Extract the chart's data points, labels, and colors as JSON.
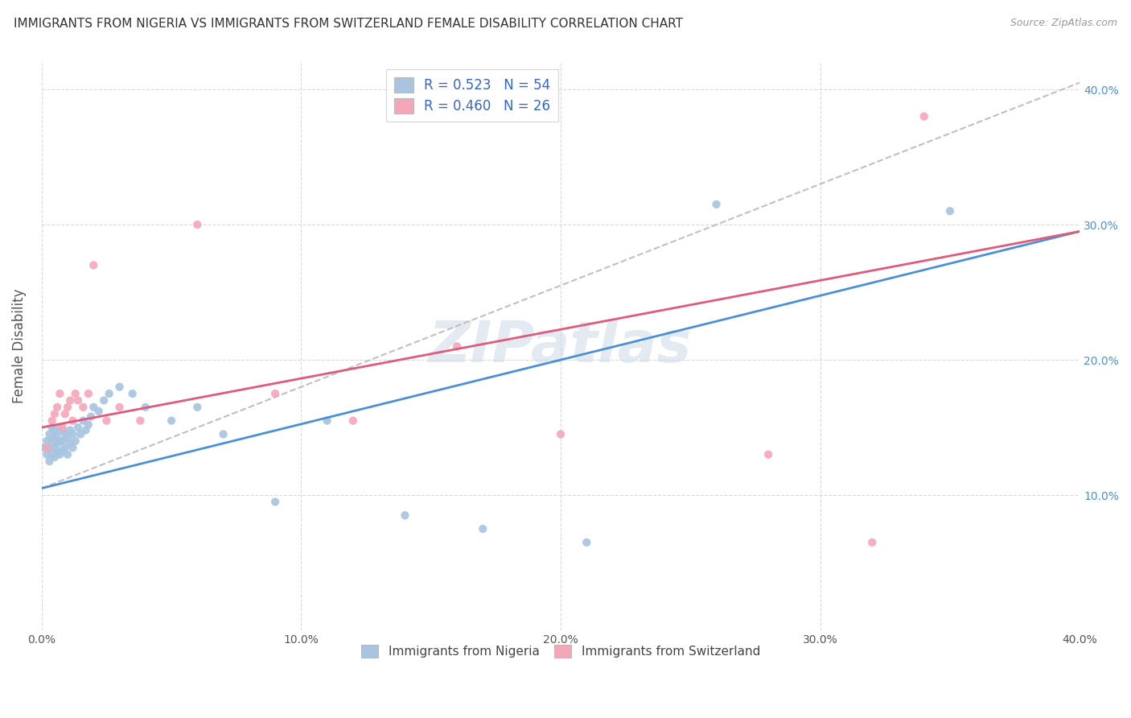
{
  "title": "IMMIGRANTS FROM NIGERIA VS IMMIGRANTS FROM SWITZERLAND FEMALE DISABILITY CORRELATION CHART",
  "source": "Source: ZipAtlas.com",
  "ylabel": "Female Disability",
  "legend_nigeria": "Immigrants from Nigeria",
  "legend_switzerland": "Immigrants from Switzerland",
  "color_nigeria": "#a8c4e0",
  "color_switzerland": "#f4a7b9",
  "line_color_nigeria": "#4a90d9",
  "line_color_switzerland": "#e05a7a",
  "line_color_dashed": "#c0c0c0",
  "watermark": "ZIPatlas",
  "xlim": [
    0.0,
    0.4
  ],
  "ylim": [
    0.0,
    0.42
  ],
  "yticks_right": [
    0.1,
    0.2,
    0.3,
    0.4
  ],
  "xticks": [
    0.0,
    0.1,
    0.2,
    0.3,
    0.4
  ],
  "nigeria_x": [
    0.001,
    0.002,
    0.002,
    0.003,
    0.003,
    0.003,
    0.004,
    0.004,
    0.004,
    0.005,
    0.005,
    0.005,
    0.005,
    0.006,
    0.006,
    0.006,
    0.007,
    0.007,
    0.007,
    0.008,
    0.008,
    0.008,
    0.009,
    0.009,
    0.01,
    0.01,
    0.011,
    0.011,
    0.012,
    0.012,
    0.013,
    0.014,
    0.015,
    0.016,
    0.017,
    0.018,
    0.019,
    0.02,
    0.022,
    0.024,
    0.026,
    0.03,
    0.035,
    0.04,
    0.05,
    0.06,
    0.07,
    0.09,
    0.11,
    0.14,
    0.17,
    0.21,
    0.26,
    0.35
  ],
  "nigeria_y": [
    0.135,
    0.13,
    0.14,
    0.125,
    0.135,
    0.145,
    0.13,
    0.14,
    0.15,
    0.128,
    0.135,
    0.142,
    0.148,
    0.132,
    0.138,
    0.145,
    0.13,
    0.14,
    0.15,
    0.133,
    0.14,
    0.148,
    0.135,
    0.145,
    0.13,
    0.142,
    0.138,
    0.148,
    0.135,
    0.145,
    0.14,
    0.15,
    0.145,
    0.155,
    0.148,
    0.152,
    0.158,
    0.165,
    0.162,
    0.17,
    0.175,
    0.18,
    0.175,
    0.165,
    0.155,
    0.165,
    0.145,
    0.095,
    0.155,
    0.085,
    0.075,
    0.065,
    0.315,
    0.31
  ],
  "switzerland_x": [
    0.002,
    0.004,
    0.005,
    0.006,
    0.007,
    0.008,
    0.009,
    0.01,
    0.011,
    0.012,
    0.013,
    0.014,
    0.016,
    0.018,
    0.02,
    0.025,
    0.03,
    0.038,
    0.06,
    0.09,
    0.12,
    0.16,
    0.2,
    0.28,
    0.32,
    0.34
  ],
  "switzerland_y": [
    0.135,
    0.155,
    0.16,
    0.165,
    0.175,
    0.15,
    0.16,
    0.165,
    0.17,
    0.155,
    0.175,
    0.17,
    0.165,
    0.175,
    0.27,
    0.155,
    0.165,
    0.155,
    0.3,
    0.175,
    0.155,
    0.21,
    0.145,
    0.13,
    0.065,
    0.38
  ],
  "r_nigeria": 0.523,
  "n_nigeria": 54,
  "r_switzerland": 0.46,
  "n_switzerland": 26,
  "nigeria_line_start_y": 0.105,
  "nigeria_line_end_y": 0.295,
  "switzerland_line_start_y": 0.15,
  "switzerland_line_end_y": 0.295,
  "dashed_line_start_y": 0.105,
  "dashed_line_end_y": 0.405
}
